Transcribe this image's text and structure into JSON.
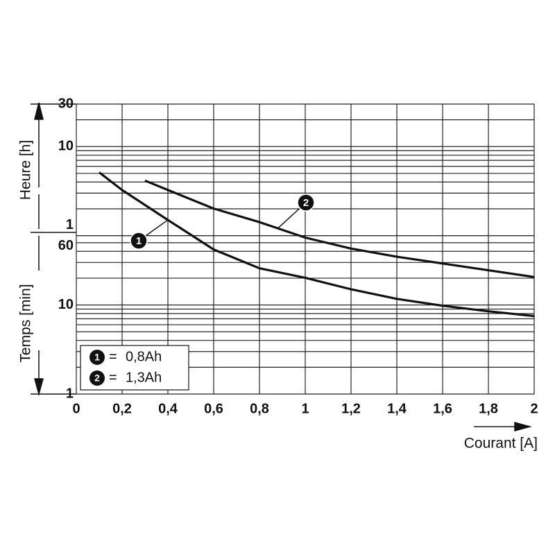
{
  "chart_data": {
    "type": "line",
    "y_axis_labels": [
      "Heure [h]",
      "Temps [min]"
    ],
    "x_label": "Courant [A]",
    "log_y": true,
    "grid": true,
    "xlim": [
      0,
      2
    ],
    "xticks": [
      0,
      {
        "value": 0.2,
        "label": "0,2"
      },
      {
        "value": 0.4,
        "label": "0,4"
      },
      {
        "value": 0.6,
        "label": "0,6"
      },
      {
        "value": 0.8,
        "label": "0,8"
      },
      1,
      {
        "value": 1.2,
        "label": "1,2"
      },
      {
        "value": 1.4,
        "label": "1,4"
      },
      {
        "value": 1.6,
        "label": "1,6"
      },
      {
        "value": 1.8,
        "label": "1,8"
      },
      2
    ],
    "ylim": [
      1,
      1800
    ],
    "yticks": [
      1,
      10,
      60,
      {
        "value": 60,
        "label": "1"
      },
      {
        "value": 600,
        "label": "10"
      },
      {
        "value": 1800,
        "label": "30"
      }
    ],
    "minor_yticks": [
      2,
      3,
      4,
      5,
      6,
      7,
      8,
      9,
      20,
      30,
      40,
      50,
      120,
      180,
      240,
      300,
      360,
      420,
      480,
      540,
      1200
    ],
    "legend_separator": "=",
    "legend_position": "lower left",
    "series": [
      {
        "name": "0,8Ah",
        "marker": "1",
        "color": "#111111",
        "x": [
          0.1,
          0.2,
          0.4,
          0.6,
          0.8,
          1.0,
          1.2,
          1.4,
          1.6,
          1.8,
          2.0
        ],
        "values": [
          308,
          195,
          90,
          42,
          25.8,
          20.2,
          15,
          11.7,
          9.8,
          8.5,
          7.5
        ]
      },
      {
        "name": "1,3Ah",
        "marker": "2",
        "color": "#111111",
        "x": [
          0.3,
          0.4,
          0.6,
          0.8,
          1.0,
          1.2,
          1.4,
          1.6,
          1.8,
          2.0
        ],
        "values": [
          249,
          195,
          121,
          85,
          57,
          43,
          34.8,
          29.2,
          24.5,
          20.6
        ]
      }
    ]
  }
}
